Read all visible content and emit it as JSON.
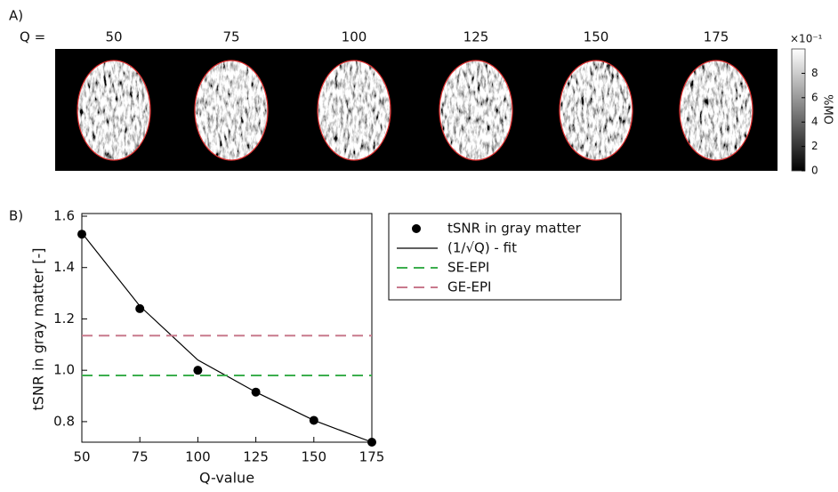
{
  "chart_data": [
    {
      "type": "image-strip",
      "panel_label": "A)",
      "row_label": "Q =",
      "categories": [
        50,
        75,
        100,
        125,
        150,
        175
      ],
      "colorbar": {
        "label": "%MO",
        "multiplier": "×10⁻¹",
        "lim": [
          0,
          10
        ],
        "ticks": [
          0,
          2,
          4,
          6,
          8
        ]
      },
      "outline_color": "#e03030"
    },
    {
      "type": "line",
      "panel_label": "B)",
      "xlabel": "Q-value",
      "ylabel": "tSNR in gray matter [-]",
      "xlim": [
        50,
        175
      ],
      "ylim": [
        0.72,
        1.6
      ],
      "xticks": [
        50,
        75,
        100,
        125,
        150,
        175
      ],
      "yticks": [
        0.8,
        {
          "value": 1,
          "label": "1.0"
        },
        1.2,
        1.4,
        1.6
      ],
      "series": [
        {
          "name": "tSNR in gray matter",
          "style": "markers",
          "color": "#000000",
          "x": [
            50,
            75,
            100,
            125,
            150,
            175
          ],
          "values": [
            1.53,
            1.24,
            1.0,
            0.915,
            0.805,
            0.72
          ]
        },
        {
          "name": "(1/√Q) - fit",
          "style": "solid",
          "color": "#000000",
          "x": [
            50,
            75,
            100,
            125,
            150,
            175
          ],
          "values": [
            1.535,
            1.25,
            1.04,
            0.915,
            0.805,
            0.72
          ]
        },
        {
          "name": "SE-EPI",
          "style": "dashed",
          "color": "#3cae4e",
          "x": [
            50,
            175
          ],
          "values": [
            0.98,
            0.98
          ]
        },
        {
          "name": "GE-EPI",
          "style": "dashed",
          "color": "#c8798c",
          "x": [
            50,
            175
          ],
          "values": [
            1.135,
            1.135
          ]
        }
      ]
    }
  ]
}
